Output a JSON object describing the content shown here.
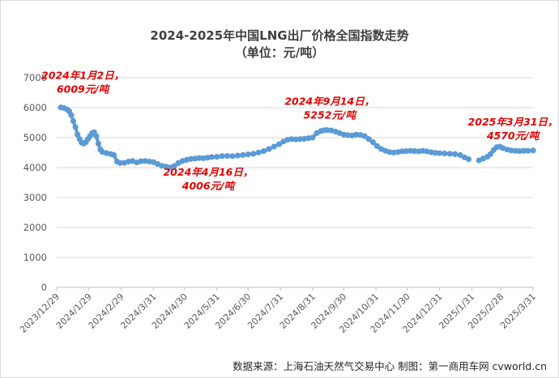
{
  "chart_data": {
    "type": "line",
    "title": "2024-2025年中国LNG出厂价格全国指数走势",
    "subtitle": "（单位：元/吨）",
    "xlabel": "",
    "ylabel": "",
    "ylim": [
      0,
      7000
    ],
    "yticks": [
      0,
      1000,
      2000,
      3000,
      4000,
      5000,
      6000,
      7000
    ],
    "xlim": [
      "2023-12-29",
      "2025-03-31"
    ],
    "xticks": [
      "2023/12/29",
      "2024/1/29",
      "2024/2/29",
      "2024/3/31",
      "2024/4/30",
      "2024/5/31",
      "2024/6/30",
      "2024/7/31",
      "2024/8/31",
      "2024/9/30",
      "2024/10/31",
      "2024/11/30",
      "2024/12/31",
      "2025/1/31",
      "2025/2/28",
      "2025/3/31"
    ],
    "grid": "horizontal",
    "legend": "none",
    "color": "#5b9bd5",
    "annotation_color": "#e00000",
    "annotations": [
      {
        "line1": "2024年1月2日，",
        "line2": "6009元/吨",
        "date": "2024-01-02",
        "value": 6009
      },
      {
        "line1": "2024年4月16日，",
        "line2": "4006元/吨",
        "date": "2024-04-16",
        "value": 4006
      },
      {
        "line1": "2024年9月14日，",
        "line2": "5252元/吨",
        "date": "2024-09-14",
        "value": 5252
      },
      {
        "line1": "2025年3月31日，",
        "line2": "4570元/吨",
        "date": "2025-03-31",
        "value": 4570
      }
    ],
    "segments": [
      [
        [
          "2024-01-02",
          6009
        ],
        [
          "2024-01-05",
          5990
        ],
        [
          "2024-01-08",
          5940
        ],
        [
          "2024-01-10",
          5880
        ],
        [
          "2024-01-12",
          5750
        ],
        [
          "2024-01-14",
          5550
        ],
        [
          "2024-01-16",
          5350
        ],
        [
          "2024-01-18",
          5100
        ],
        [
          "2024-01-20",
          4950
        ],
        [
          "2024-01-22",
          4830
        ],
        [
          "2024-01-24",
          4800
        ],
        [
          "2024-01-26",
          4850
        ],
        [
          "2024-01-28",
          4950
        ],
        [
          "2024-01-30",
          5050
        ],
        [
          "2024-02-01",
          5150
        ],
        [
          "2024-02-03",
          5180
        ],
        [
          "2024-02-05",
          5050
        ],
        [
          "2024-02-07",
          4800
        ],
        [
          "2024-02-09",
          4600
        ],
        [
          "2024-02-11",
          4520
        ],
        [
          "2024-02-15",
          4480
        ],
        [
          "2024-02-19",
          4450
        ],
        [
          "2024-02-22",
          4420
        ],
        [
          "2024-02-25",
          4200
        ],
        [
          "2024-02-28",
          4150
        ],
        [
          "2024-03-03",
          4160
        ],
        [
          "2024-03-07",
          4200
        ],
        [
          "2024-03-11",
          4220
        ],
        [
          "2024-03-15",
          4170
        ],
        [
          "2024-03-19",
          4210
        ],
        [
          "2024-03-23",
          4220
        ],
        [
          "2024-03-27",
          4200
        ],
        [
          "2024-03-31",
          4180
        ],
        [
          "2024-04-04",
          4120
        ],
        [
          "2024-04-08",
          4060
        ],
        [
          "2024-04-12",
          4030
        ],
        [
          "2024-04-16",
          4006
        ],
        [
          "2024-04-20",
          4050
        ],
        [
          "2024-04-24",
          4150
        ],
        [
          "2024-04-28",
          4220
        ],
        [
          "2024-05-02",
          4260
        ],
        [
          "2024-05-06",
          4290
        ],
        [
          "2024-05-10",
          4300
        ],
        [
          "2024-05-14",
          4320
        ],
        [
          "2024-05-18",
          4310
        ],
        [
          "2024-05-22",
          4330
        ],
        [
          "2024-05-26",
          4350
        ],
        [
          "2024-05-31",
          4360
        ],
        [
          "2024-06-05",
          4380
        ],
        [
          "2024-06-10",
          4390
        ],
        [
          "2024-06-15",
          4380
        ],
        [
          "2024-06-20",
          4400
        ],
        [
          "2024-06-25",
          4420
        ],
        [
          "2024-06-30",
          4440
        ],
        [
          "2024-07-05",
          4460
        ],
        [
          "2024-07-10",
          4500
        ],
        [
          "2024-07-15",
          4550
        ],
        [
          "2024-07-20",
          4620
        ],
        [
          "2024-07-25",
          4700
        ],
        [
          "2024-07-30",
          4780
        ],
        [
          "2024-08-03",
          4870
        ],
        [
          "2024-08-07",
          4930
        ],
        [
          "2024-08-11",
          4950
        ],
        [
          "2024-08-15",
          4940
        ],
        [
          "2024-08-19",
          4950
        ],
        [
          "2024-08-23",
          4960
        ],
        [
          "2024-08-27",
          4980
        ],
        [
          "2024-08-31",
          5000
        ],
        [
          "2024-09-04",
          5150
        ],
        [
          "2024-09-08",
          5220
        ],
        [
          "2024-09-11",
          5245
        ],
        [
          "2024-09-14",
          5252
        ],
        [
          "2024-09-18",
          5240
        ],
        [
          "2024-09-22",
          5200
        ],
        [
          "2024-09-26",
          5150
        ],
        [
          "2024-09-30",
          5100
        ],
        [
          "2024-10-04",
          5080
        ],
        [
          "2024-10-08",
          5070
        ],
        [
          "2024-10-12",
          5100
        ],
        [
          "2024-10-16",
          5090
        ],
        [
          "2024-10-20",
          5050
        ],
        [
          "2024-10-24",
          4950
        ],
        [
          "2024-10-28",
          4850
        ],
        [
          "2024-11-01",
          4720
        ],
        [
          "2024-11-05",
          4620
        ],
        [
          "2024-11-09",
          4560
        ],
        [
          "2024-11-13",
          4520
        ],
        [
          "2024-11-17",
          4500
        ],
        [
          "2024-11-21",
          4520
        ],
        [
          "2024-11-25",
          4540
        ],
        [
          "2024-11-29",
          4550
        ],
        [
          "2024-12-03",
          4560
        ],
        [
          "2024-12-07",
          4550
        ],
        [
          "2024-12-11",
          4540
        ],
        [
          "2024-12-15",
          4560
        ],
        [
          "2024-12-19",
          4540
        ],
        [
          "2024-12-23",
          4510
        ],
        [
          "2024-12-27",
          4490
        ],
        [
          "2024-12-31",
          4480
        ],
        [
          "2025-01-05",
          4470
        ],
        [
          "2025-01-10",
          4460
        ],
        [
          "2025-01-15",
          4450
        ],
        [
          "2025-01-20",
          4420
        ],
        [
          "2025-01-24",
          4340
        ],
        [
          "2025-01-28",
          4280
        ]
      ],
      [
        [
          "2025-02-07",
          4240
        ],
        [
          "2025-02-11",
          4300
        ],
        [
          "2025-02-15",
          4360
        ],
        [
          "2025-02-18",
          4450
        ],
        [
          "2025-02-21",
          4580
        ],
        [
          "2025-02-24",
          4680
        ],
        [
          "2025-02-27",
          4700
        ],
        [
          "2025-03-02",
          4650
        ],
        [
          "2025-03-06",
          4600
        ],
        [
          "2025-03-10",
          4570
        ],
        [
          "2025-03-14",
          4560
        ],
        [
          "2025-03-18",
          4550
        ],
        [
          "2025-03-22",
          4560
        ],
        [
          "2025-03-26",
          4560
        ],
        [
          "2025-03-31",
          4570
        ]
      ]
    ]
  },
  "footer": {
    "source": "数据来源：上海石油天然气交易中心 制图：第一商用车网 cvworld.cn"
  }
}
